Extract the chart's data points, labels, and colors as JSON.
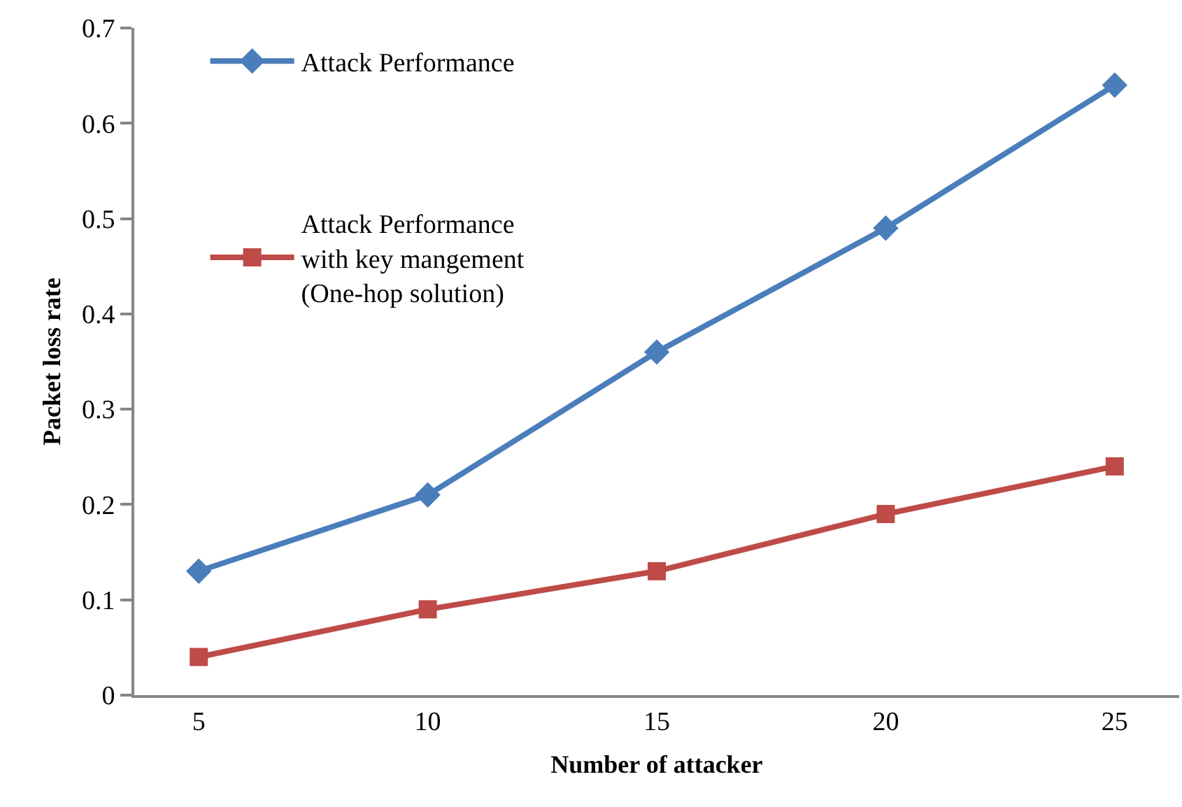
{
  "chart_data": {
    "type": "line",
    "xlabel": "Number of attacker",
    "ylabel": "Packet loss rate",
    "categories": [
      "5",
      "10",
      "15",
      "20",
      "25"
    ],
    "series": [
      {
        "name": "Attack Performance",
        "color": "#4a7ebb",
        "marker": "diamond",
        "values": [
          0.13,
          0.21,
          0.36,
          0.49,
          0.64
        ]
      },
      {
        "name": "Attack Performance with key mangement (One-hop solution)",
        "color": "#be4b48",
        "marker": "square",
        "values": [
          0.04,
          0.09,
          0.13,
          0.19,
          0.24
        ]
      }
    ],
    "ylim": [
      0,
      0.7
    ],
    "yticks": [
      0,
      0.1,
      0.2,
      0.3,
      0.4,
      0.5,
      0.6,
      0.7
    ],
    "legend": "top left"
  }
}
